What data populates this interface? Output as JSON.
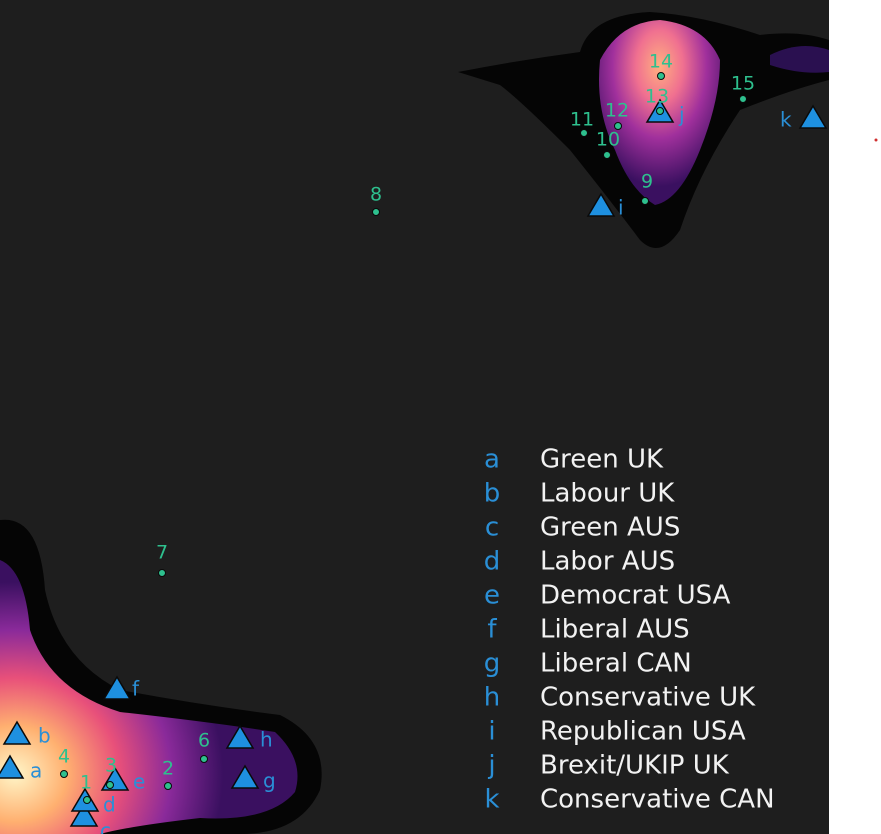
{
  "points": [
    "1",
    "2",
    "3",
    "4",
    "6",
    "7",
    "8",
    "9",
    "10",
    "11",
    "12",
    "13",
    "14",
    "15"
  ],
  "legend": [
    {
      "key": "a",
      "label": "Green UK"
    },
    {
      "key": "b",
      "label": "Labour UK"
    },
    {
      "key": "c",
      "label": "Green AUS"
    },
    {
      "key": "d",
      "label": "Labor AUS"
    },
    {
      "key": "e",
      "label": "Democrat USA"
    },
    {
      "key": "f",
      "label": "Liberal AUS"
    },
    {
      "key": "g",
      "label": "Liberal CAN"
    },
    {
      "key": "h",
      "label": "Conservative UK"
    },
    {
      "key": "i",
      "label": "Republican USA"
    },
    {
      "key": "j",
      "label": "Brexit/UKIP UK"
    },
    {
      "key": "k",
      "label": "Conservative CAN"
    }
  ]
}
